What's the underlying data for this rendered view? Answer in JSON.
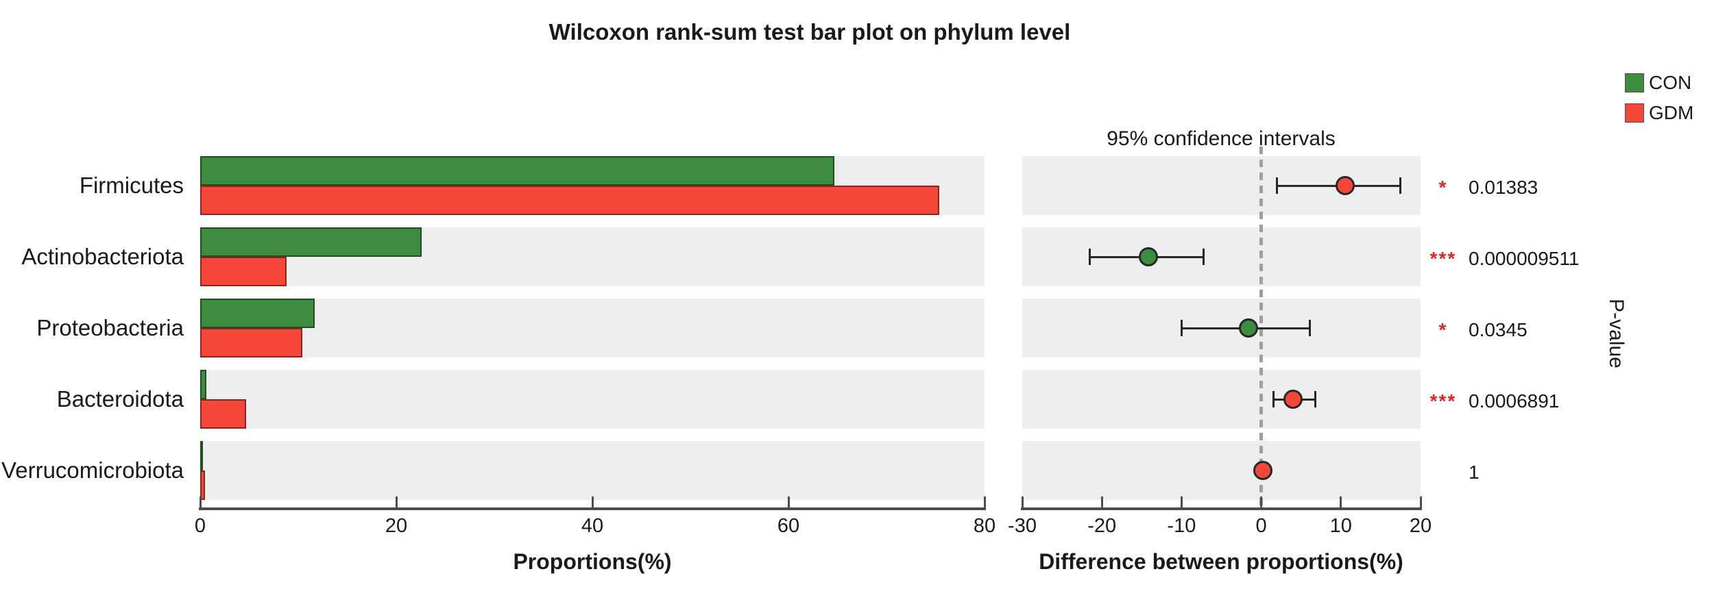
{
  "title": "Wilcoxon rank-sum test bar plot on phylum level",
  "legend": {
    "items": [
      {
        "label": "CON",
        "color": "#3d8c40"
      },
      {
        "label": "GDM",
        "color": "#f4473a"
      }
    ]
  },
  "left_panel": {
    "xlabel": "Proportions(%)",
    "ticks": [
      "0",
      "20",
      "40",
      "60",
      "80"
    ]
  },
  "right_panel": {
    "title": "95% confidence intervals",
    "xlabel": "Difference between proportions(%)",
    "ticks": [
      "-30",
      "-20",
      "-10",
      "0",
      "10",
      "20"
    ],
    "right_label": "P-value"
  },
  "chart_data": {
    "type": "bar",
    "subtype": "grouped horizontal bars with extended error-bar (STAMP-style) difference panel",
    "categories": [
      "Firmicutes",
      "Actinobacteriota",
      "Proteobacteria",
      "Bacteroidota",
      "Verrucomicrobiota"
    ],
    "series": [
      {
        "name": "CON",
        "color": "#3d8c40",
        "values": [
          64.7,
          22.6,
          11.7,
          0.65,
          0.12
        ]
      },
      {
        "name": "GDM",
        "color": "#f4473a",
        "values": [
          75.4,
          8.8,
          10.4,
          4.7,
          0.5
        ]
      }
    ],
    "proportions_xlim": [
      0,
      80
    ],
    "difference": {
      "xlim": [
        -30,
        20
      ],
      "values": [
        10.5,
        -14.2,
        -1.6,
        4.0,
        0.2
      ],
      "ci_low": [
        2.0,
        -21.5,
        -10.0,
        1.5,
        -0.1
      ],
      "ci_high": [
        17.5,
        -7.2,
        6.1,
        6.8,
        0.5
      ],
      "dot_colors": [
        "#f4473a",
        "#3d8c40",
        "#3d8c40",
        "#f4473a",
        "#f4473a"
      ]
    },
    "p_values": [
      "0.01383",
      "0.000009511",
      "0.0345",
      "0.0006891",
      "1"
    ],
    "significance": [
      "*",
      "***",
      "*",
      "***",
      ""
    ],
    "grid": false,
    "row_band_color": "#eeeeee",
    "legend_position": "top-right"
  }
}
